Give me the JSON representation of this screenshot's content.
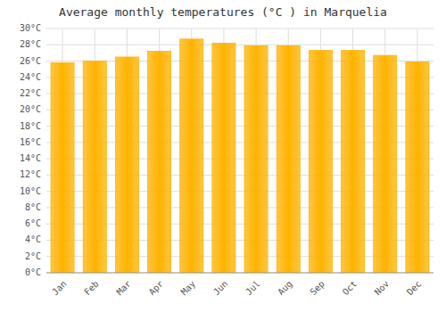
{
  "chart_data": {
    "type": "bar",
    "title": "Average monthly temperatures (°C ) in Marquelia",
    "categories": [
      "Jan",
      "Feb",
      "Mar",
      "Apr",
      "May",
      "Jun",
      "Jul",
      "Aug",
      "Sep",
      "Oct",
      "Nov",
      "Dec"
    ],
    "values": [
      25.8,
      26.0,
      26.5,
      27.2,
      28.7,
      28.2,
      27.9,
      27.9,
      27.3,
      27.3,
      26.7,
      25.9
    ],
    "color": "#FFB300",
    "ylim": [
      0,
      30
    ],
    "yticks": [
      {
        "value": 0,
        "label": "0°C"
      },
      {
        "value": 2,
        "label": "2°C"
      },
      {
        "value": 4,
        "label": "4°C"
      },
      {
        "value": 6,
        "label": "6°C"
      },
      {
        "value": 8,
        "label": "8°C"
      },
      {
        "value": 10,
        "label": "10°C"
      },
      {
        "value": 12,
        "label": "12°C"
      },
      {
        "value": 14,
        "label": "14°C"
      },
      {
        "value": 16,
        "label": "16°C"
      },
      {
        "value": 18,
        "label": "18°C"
      },
      {
        "value": 20,
        "label": "20°C"
      },
      {
        "value": 22,
        "label": "22°C"
      },
      {
        "value": 24,
        "label": "24°C"
      },
      {
        "value": 26,
        "label": "26°C"
      },
      {
        "value": 28,
        "label": "28°C"
      },
      {
        "value": 30,
        "label": "30°C"
      }
    ],
    "grid": true
  }
}
